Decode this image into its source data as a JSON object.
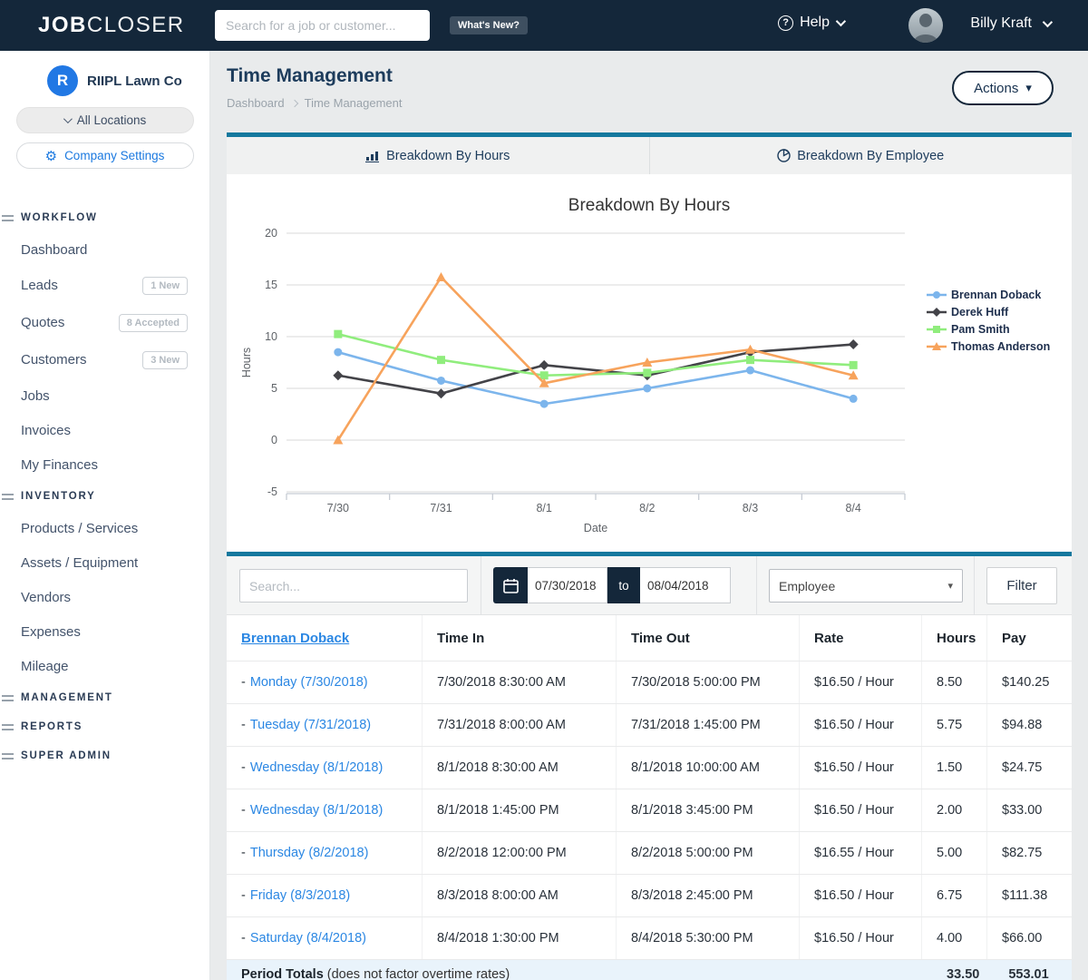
{
  "navbar": {
    "brand_bold": "JOB",
    "brand_light": "CLOSER",
    "search_placeholder": "Search for a job or customer...",
    "whats_new_label": "What's New?",
    "help_label": "Help",
    "user_name": "Billy Kraft"
  },
  "sidebar": {
    "company_initial": "R",
    "company_name": "RIIPL Lawn Co",
    "locations_button": "All Locations",
    "settings_button": "Company Settings",
    "sections": [
      {
        "label": "WORKFLOW",
        "items": [
          {
            "label": "Dashboard"
          },
          {
            "label": "Leads",
            "badge": "1 New"
          },
          {
            "label": "Quotes",
            "badge": "8 Accepted"
          },
          {
            "label": "Customers",
            "badge": "3 New"
          },
          {
            "label": "Jobs"
          },
          {
            "label": "Invoices"
          },
          {
            "label": "My Finances"
          }
        ]
      },
      {
        "label": "INVENTORY",
        "items": [
          {
            "label": "Products / Services"
          },
          {
            "label": "Assets / Equipment"
          },
          {
            "label": "Vendors"
          },
          {
            "label": "Expenses"
          },
          {
            "label": "Mileage"
          }
        ]
      },
      {
        "label": "MANAGEMENT",
        "items": []
      },
      {
        "label": "REPORTS",
        "items": []
      },
      {
        "label": "SUPER ADMIN",
        "items": []
      }
    ]
  },
  "page": {
    "title": "Time Management",
    "breadcrumb_home": "Dashboard",
    "breadcrumb_current": "Time Management",
    "actions_button": "Actions"
  },
  "tabs": [
    {
      "label": "Breakdown By Hours",
      "icon": "bar-chart-icon"
    },
    {
      "label": "Breakdown By Employee",
      "icon": "pie-chart-icon"
    }
  ],
  "chart_data": {
    "type": "line",
    "title": "Breakdown By Hours",
    "xlabel": "Date",
    "ylabel": "Hours",
    "categories": [
      "7/30",
      "7/31",
      "8/1",
      "8/2",
      "8/3",
      "8/4"
    ],
    "ylim": [
      -5,
      20
    ],
    "yticks": [
      20,
      15,
      10,
      5,
      0,
      -5
    ],
    "grid": true,
    "legend_position": "right",
    "series": [
      {
        "name": "Brennan Doback",
        "color": "#7cb5ec",
        "marker": "circle",
        "values": [
          8.5,
          5.75,
          3.5,
          5,
          6.75,
          4
        ]
      },
      {
        "name": "Derek Huff",
        "color": "#434348",
        "marker": "diamond",
        "values": [
          6.25,
          4.5,
          7.25,
          6.25,
          8.5,
          9.25
        ]
      },
      {
        "name": "Pam Smith",
        "color": "#90ed7d",
        "marker": "square",
        "values": [
          10.25,
          7.75,
          6.25,
          6.5,
          7.75,
          7.25
        ]
      },
      {
        "name": "Thomas Anderson",
        "color": "#f7a35c",
        "marker": "triangle",
        "values": [
          0,
          15.75,
          5.5,
          7.5,
          8.75,
          6.25
        ]
      }
    ]
  },
  "filters": {
    "search_placeholder": "Search...",
    "date_from": "07/30/2018",
    "to_label": "to",
    "date_to": "08/04/2018",
    "employee_select_value": "Employee",
    "filter_button": "Filter"
  },
  "table": {
    "day_prefix": "-",
    "columns": [
      "Brennan Doback",
      "Time In",
      "Time Out",
      "Rate",
      "Hours",
      "Pay"
    ],
    "rows": [
      {
        "day": "Monday (7/30/2018)",
        "time_in": "7/30/2018 8:30:00 AM",
        "time_out": "7/30/2018 5:00:00 PM",
        "rate": "$16.50 / Hour",
        "hours": "8.50",
        "pay": "$140.25"
      },
      {
        "day": "Tuesday (7/31/2018)",
        "time_in": "7/31/2018 8:00:00 AM",
        "time_out": "7/31/2018 1:45:00 PM",
        "rate": "$16.50 / Hour",
        "hours": "5.75",
        "pay": "$94.88"
      },
      {
        "day": "Wednesday (8/1/2018)",
        "time_in": "8/1/2018 8:30:00 AM",
        "time_out": "8/1/2018 10:00:00 AM",
        "rate": "$16.50 / Hour",
        "hours": "1.50",
        "pay": "$24.75"
      },
      {
        "day": "Wednesday (8/1/2018)",
        "time_in": "8/1/2018 1:45:00 PM",
        "time_out": "8/1/2018 3:45:00 PM",
        "rate": "$16.50 / Hour",
        "hours": "2.00",
        "pay": "$33.00"
      },
      {
        "day": "Thursday (8/2/2018)",
        "time_in": "8/2/2018 12:00:00 PM",
        "time_out": "8/2/2018 5:00:00 PM",
        "rate": "$16.55 / Hour",
        "hours": "5.00",
        "pay": "$82.75"
      },
      {
        "day": "Friday (8/3/2018)",
        "time_in": "8/3/2018 8:00:00 AM",
        "time_out": "8/3/2018 2:45:00 PM",
        "rate": "$16.50 / Hour",
        "hours": "6.75",
        "pay": "$111.38"
      },
      {
        "day": "Saturday (8/4/2018)",
        "time_in": "8/4/2018 1:30:00 PM",
        "time_out": "8/4/2018 5:30:00 PM",
        "rate": "$16.50 / Hour",
        "hours": "4.00",
        "pay": "$66.00"
      }
    ],
    "totals": {
      "label": "Period Totals",
      "note": "(does not factor overtime rates)",
      "hours": "33.50",
      "pay": "553.01"
    }
  },
  "colors": {
    "navy": "#14273a",
    "teal_accent": "#15789e",
    "link_blue": "#2b87e3",
    "grid_line": "#d9d9d9",
    "axis_line": "#c6ccd4",
    "totals_bg": "#e9f3fb"
  }
}
